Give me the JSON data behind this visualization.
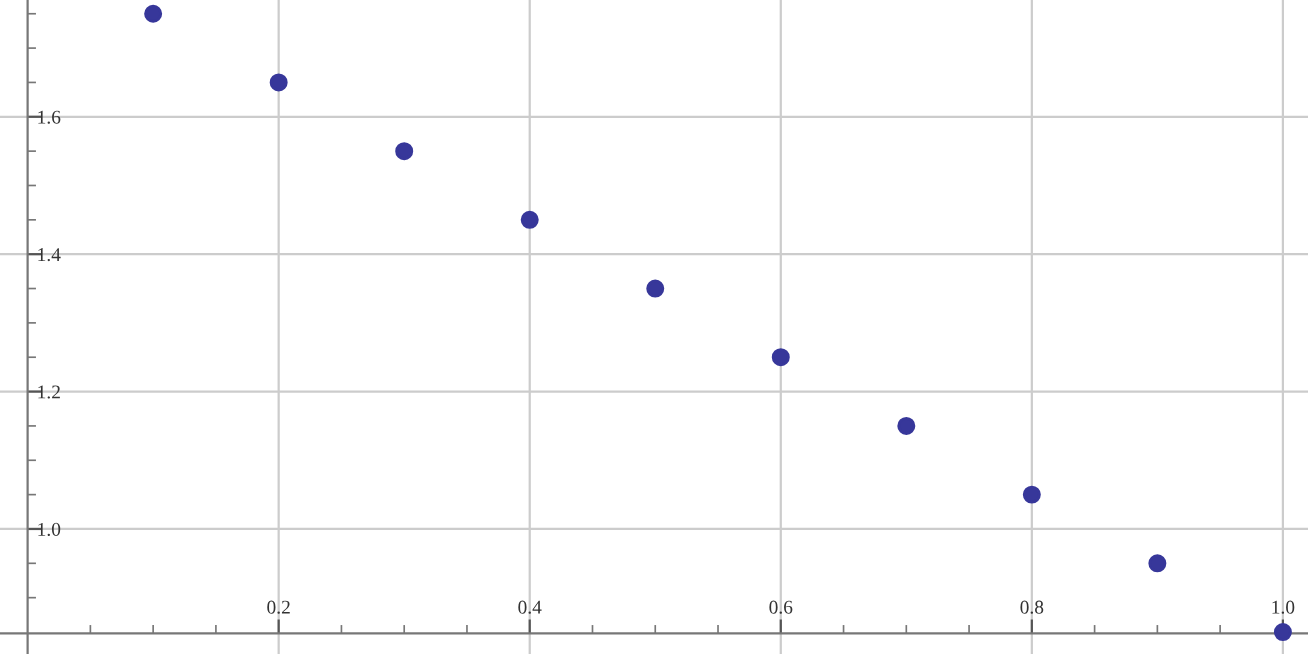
{
  "chart_data": {
    "type": "scatter",
    "x": [
      0.1,
      0.2,
      0.3,
      0.4,
      0.5,
      0.6,
      0.7,
      0.8,
      0.9,
      1.0
    ],
    "series": [
      {
        "color": "#37379a",
        "values": [
          1.75,
          1.65,
          1.55,
          1.45,
          1.35,
          1.25,
          1.15,
          1.05,
          0.95,
          0.85
        ]
      }
    ],
    "marker": "circle",
    "xlim": [
      -0.022,
      1.02
    ],
    "ylim": [
      0.818,
      1.77
    ],
    "xticks": [
      {
        "value": 0.05,
        "label": null
      },
      {
        "value": 0.1,
        "label": null
      },
      {
        "value": 0.15,
        "label": null
      },
      {
        "value": 0.2,
        "label": "0.2"
      },
      {
        "value": 0.25,
        "label": null
      },
      {
        "value": 0.3,
        "label": null
      },
      {
        "value": 0.35,
        "label": null
      },
      {
        "value": 0.4,
        "label": "0.4"
      },
      {
        "value": 0.45,
        "label": null
      },
      {
        "value": 0.5,
        "label": null
      },
      {
        "value": 0.55,
        "label": null
      },
      {
        "value": 0.6,
        "label": "0.6"
      },
      {
        "value": 0.65,
        "label": null
      },
      {
        "value": 0.7,
        "label": null
      },
      {
        "value": 0.75,
        "label": null
      },
      {
        "value": 0.8,
        "label": "0.8"
      },
      {
        "value": 0.85,
        "label": null
      },
      {
        "value": 0.9,
        "label": null
      },
      {
        "value": 0.95,
        "label": null
      },
      {
        "value": 1.0,
        "label": "1.0"
      }
    ],
    "yticks": [
      {
        "value": 0.9,
        "label": null
      },
      {
        "value": 0.95,
        "label": null
      },
      {
        "value": 1.0,
        "label": "1.0"
      },
      {
        "value": 1.05,
        "label": null
      },
      {
        "value": 1.1,
        "label": null
      },
      {
        "value": 1.15,
        "label": null
      },
      {
        "value": 1.2,
        "label": "1.2"
      },
      {
        "value": 1.25,
        "label": null
      },
      {
        "value": 1.3,
        "label": null
      },
      {
        "value": 1.35,
        "label": null
      },
      {
        "value": 1.4,
        "label": "1.4"
      },
      {
        "value": 1.45,
        "label": null
      },
      {
        "value": 1.5,
        "label": null
      },
      {
        "value": 1.55,
        "label": null
      },
      {
        "value": 1.6,
        "label": "1.6"
      },
      {
        "value": 1.65,
        "label": null
      },
      {
        "value": 1.7,
        "label": null
      },
      {
        "value": 1.75,
        "label": null
      }
    ],
    "grid": true
  }
}
